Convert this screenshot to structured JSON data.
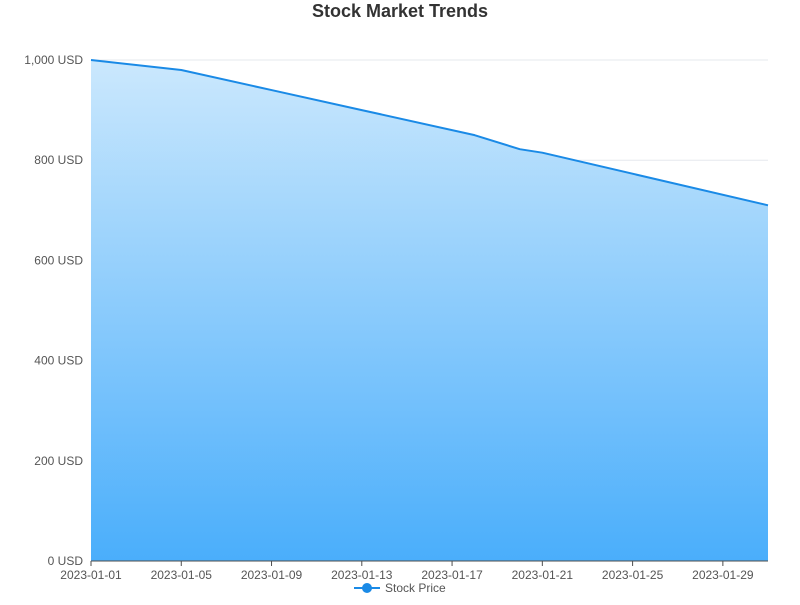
{
  "colors": {
    "line": "#1a8ae6",
    "area_top": "#cbe8fd",
    "area_bottom": "#4aaefb",
    "grid": "#e6e8ee",
    "axis": "#4d4d4d",
    "tick_text": "#555555",
    "title_text": "#333333",
    "legend_marker": "#1a8ae6"
  },
  "chart_data": {
    "type": "area",
    "title": "Stock Market Trends",
    "xlabel": "",
    "ylabel": "",
    "x_start": "2023-01-01",
    "x_end": "2023-01-31",
    "y_range": [
      0,
      1000
    ],
    "y_ticks": [
      0,
      200,
      400,
      600,
      800,
      1000
    ],
    "y_tick_labels": [
      "0 USD",
      "200 USD",
      "400 USD",
      "600 USD",
      "800 USD",
      "1,000 USD"
    ],
    "x_tick_labels": [
      "2023-01-01",
      "2023-01-05",
      "2023-01-09",
      "2023-01-13",
      "2023-01-17",
      "2023-01-21",
      "2023-01-25",
      "2023-01-29"
    ],
    "grid": true,
    "legend_position": "bottom-center",
    "series": [
      {
        "name": "Stock Price",
        "x": [
          "2023-01-01",
          "2023-01-05",
          "2023-01-09",
          "2023-01-13",
          "2023-01-18",
          "2023-01-20",
          "2023-01-21",
          "2023-01-31"
        ],
        "values": [
          1000,
          980,
          940,
          900,
          850,
          822,
          815,
          710
        ]
      }
    ]
  }
}
